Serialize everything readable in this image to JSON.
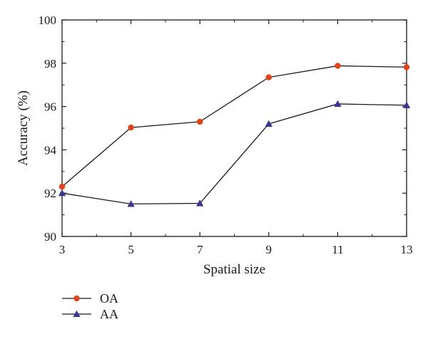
{
  "chart_data": {
    "type": "line",
    "x": [
      3,
      5,
      7,
      9,
      11,
      13
    ],
    "xticks": [
      "3",
      "5",
      "7",
      "9",
      "11",
      "13"
    ],
    "yticks": [
      "90",
      "92",
      "94",
      "96",
      "98",
      "100"
    ],
    "xlim": [
      3,
      13
    ],
    "ylim": [
      90,
      100
    ],
    "xlabel": "Spatial size",
    "ylabel": "Accuracy (%)",
    "grid": false,
    "legend_position": "bottom-left",
    "series": [
      {
        "name": "OA",
        "marker": "circle",
        "color": "#e0441b",
        "values": [
          92.3,
          95.03,
          95.3,
          97.35,
          97.88,
          97.82
        ]
      },
      {
        "name": "AA",
        "marker": "triangle",
        "color": "#3a3592",
        "values": [
          92.0,
          91.5,
          91.53,
          95.2,
          96.12,
          96.06
        ]
      }
    ]
  }
}
